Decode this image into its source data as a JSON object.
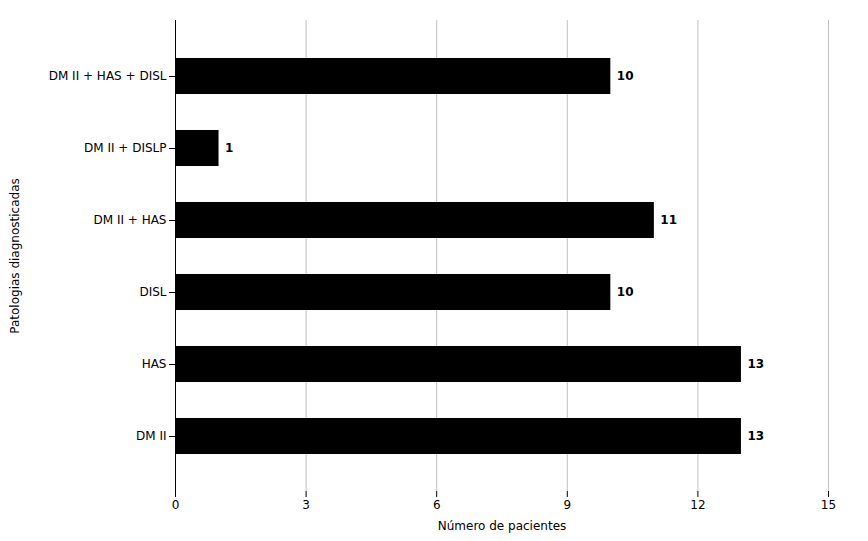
{
  "chart_data": {
    "type": "bar",
    "orientation": "horizontal",
    "categories": [
      "DM II",
      "HAS",
      "DISL",
      "DM II + HAS",
      "DM II + DISLP",
      "DM II + HAS + DISL"
    ],
    "values": [
      13,
      13,
      10,
      11,
      1,
      10
    ],
    "xlabel": "Número de pacientes",
    "ylabel": "Patologias diagnosticadas",
    "xlim": [
      0,
      15
    ],
    "xticks": [
      0,
      3,
      6,
      9,
      12,
      15
    ],
    "grid": true,
    "data_labels": true
  }
}
